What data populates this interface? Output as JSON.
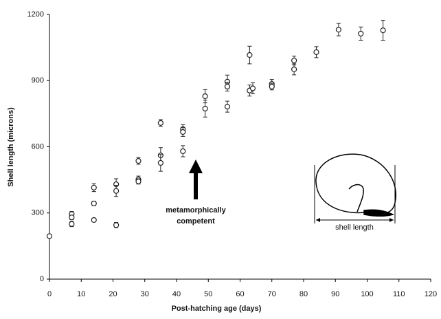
{
  "chart_data": {
    "type": "scatter",
    "x_label": "Post-hatching age (days)",
    "y_label": "Shell length (microns)",
    "annotation": [
      "metamorphically",
      "competent"
    ],
    "inset_label": "shell length",
    "xlim": [
      0,
      120
    ],
    "xticks": [
      0,
      10,
      20,
      30,
      40,
      50,
      60,
      70,
      80,
      90,
      100,
      110,
      120
    ],
    "ylim": [
      0,
      1200
    ],
    "yticks": [
      0,
      300,
      600,
      900,
      1200
    ],
    "series": [
      {
        "color": "#222222",
        "x": [
          0,
          7,
          7,
          7,
          14,
          14,
          14,
          21,
          21,
          21,
          28,
          28,
          28,
          35,
          35,
          35,
          42,
          42,
          42,
          49,
          49,
          56,
          56,
          56,
          63,
          63,
          64,
          70,
          70,
          77,
          77,
          84,
          91,
          98,
          105
        ],
        "y": [
          195,
          295,
          280,
          250,
          415,
          343,
          268,
          430,
          400,
          245,
          536,
          452,
          443,
          708,
          561,
          527,
          680,
          667,
          580,
          829,
          773,
          895,
          873,
          782,
          1016,
          855,
          865,
          885,
          873,
          991,
          951,
          1029,
          1131,
          1113,
          1128
        ],
        "error": [
          8,
          12,
          10,
          12,
          18,
          10,
          8,
          25,
          25,
          12,
          15,
          15,
          12,
          15,
          35,
          38,
          20,
          20,
          25,
          30,
          38,
          30,
          20,
          25,
          40,
          25,
          25,
          20,
          15,
          20,
          25,
          25,
          28,
          30,
          45
        ]
      }
    ]
  }
}
